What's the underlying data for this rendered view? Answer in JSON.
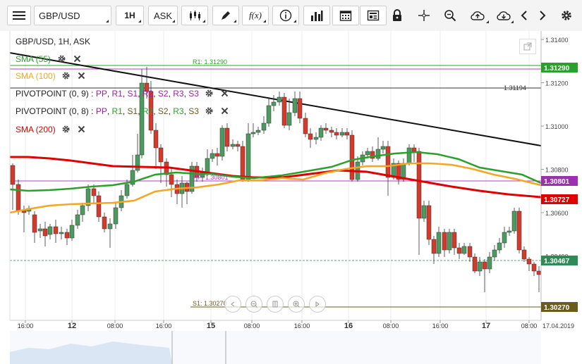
{
  "toolbar": {
    "symbol": "GBP/USD",
    "interval": "1H",
    "price_type": "ASK",
    "fx_label": "f(x)"
  },
  "chart": {
    "title": "GBP/USD, 1H, ASK",
    "date_label": "17.04.2019",
    "price_axis": [
      "1.31400",
      "1.31200",
      "1.31000",
      "1.30800",
      "1.30600",
      "1.30400"
    ],
    "time_axis": [
      {
        "label": "16:00",
        "bold": false
      },
      {
        "label": "12",
        "bold": true
      },
      {
        "label": "08:00",
        "bold": false
      },
      {
        "label": "16:00",
        "bold": false
      },
      {
        "label": "15",
        "bold": true
      },
      {
        "label": "08:00",
        "bold": false
      },
      {
        "label": "16:00",
        "bold": false
      },
      {
        "label": "16",
        "bold": true
      },
      {
        "label": "08:00",
        "bold": false
      },
      {
        "label": "16:00",
        "bold": false
      },
      {
        "label": "17",
        "bold": true
      },
      {
        "label": "08:00",
        "bold": false
      }
    ],
    "price_tags": [
      {
        "value": "1.31290",
        "color": "#2ca02c"
      },
      {
        "value": "1.30801",
        "color": "#9b30b0"
      },
      {
        "value": "1.30727",
        "color": "#e00000"
      },
      {
        "value": "1.30467",
        "color": "#2e8b57"
      },
      {
        "value": "1.30270",
        "color": "#6b5a1e"
      }
    ],
    "line_labels": {
      "r1": "R1: 1.31290",
      "pp": "PP: 1.30801",
      "s1": "S1: 1.30270",
      "crosshair": "1.31194"
    },
    "indicators": [
      {
        "label": "SMA (55)",
        "color": "#2ca02c",
        "type": "sma"
      },
      {
        "label": "SMA (100)",
        "color": "#f5a623",
        "type": "sma"
      },
      {
        "label": "PIVOTPOINT (0, 9)",
        "type": "pivot",
        "parts": [
          {
            "t": " : ",
            "c": "#222"
          },
          {
            "t": "PP",
            "c": "#a020a0"
          },
          {
            "t": ", ",
            "c": "#222"
          },
          {
            "t": "R1",
            "c": "#a020a0"
          },
          {
            "t": ", ",
            "c": "#222"
          },
          {
            "t": "S1",
            "c": "#a020a0"
          },
          {
            "t": ", ",
            "c": "#222"
          },
          {
            "t": "R2",
            "c": "#a020a0"
          },
          {
            "t": ", ",
            "c": "#222"
          },
          {
            "t": "S2",
            "c": "#a020a0"
          },
          {
            "t": ", ",
            "c": "#222"
          },
          {
            "t": "R3",
            "c": "#a020a0"
          },
          {
            "t": ", ",
            "c": "#222"
          },
          {
            "t": "S3",
            "c": "#a020a0"
          }
        ]
      },
      {
        "label": "PIVOTPOINT (0, 8)",
        "type": "pivot",
        "parts": [
          {
            "t": " : ",
            "c": "#222"
          },
          {
            "t": "PP",
            "c": "#a020a0"
          },
          {
            "t": ", ",
            "c": "#222"
          },
          {
            "t": "R1",
            "c": "#2ca02c"
          },
          {
            "t": ", ",
            "c": "#222"
          },
          {
            "t": "S1",
            "c": "#6b5a1e"
          },
          {
            "t": ", ",
            "c": "#222"
          },
          {
            "t": "R2",
            "c": "#2ca02c"
          },
          {
            "t": ", ",
            "c": "#222"
          },
          {
            "t": "S2",
            "c": "#6b5a1e"
          },
          {
            "t": ", ",
            "c": "#222"
          },
          {
            "t": "R3",
            "c": "#2ca02c"
          },
          {
            "t": ", ",
            "c": "#222"
          },
          {
            "t": "S3",
            "c": "#6b5a1e"
          }
        ]
      },
      {
        "label": "SMA (200)",
        "color": "#e00000",
        "type": "sma"
      }
    ]
  }
}
